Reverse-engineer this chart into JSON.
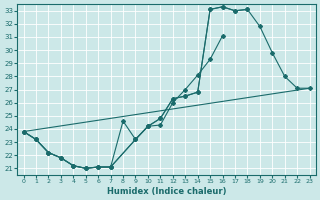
{
  "xlabel": "Humidex (Indice chaleur)",
  "bg_color": "#cce8e8",
  "line_color": "#1a6b6b",
  "xlim": [
    -0.5,
    23.5
  ],
  "ylim": [
    20.5,
    33.5
  ],
  "xticks": [
    0,
    1,
    2,
    3,
    4,
    5,
    6,
    7,
    8,
    9,
    10,
    11,
    12,
    13,
    14,
    15,
    16,
    17,
    18,
    19,
    20,
    21,
    22,
    23
  ],
  "yticks": [
    21,
    22,
    23,
    24,
    25,
    26,
    27,
    28,
    29,
    30,
    31,
    32,
    33
  ],
  "series": [
    {
      "x": [
        0,
        1,
        2,
        3,
        4,
        5,
        6,
        7,
        9,
        10,
        11,
        12,
        13,
        14,
        15,
        16,
        17,
        18,
        19,
        20,
        21,
        22,
        23
      ],
      "y": [
        23.8,
        23.2,
        22.2,
        21.8,
        21.2,
        21.0,
        21.1,
        21.1,
        23.2,
        24.2,
        24.8,
        26.3,
        26.5,
        26.8,
        33.1,
        33.3,
        33.0,
        33.1,
        31.8,
        29.8,
        28.0,
        27.1,
        27.1
      ]
    },
    {
      "x": [
        0,
        1,
        2,
        3,
        4,
        5,
        6,
        7,
        9,
        10,
        11,
        12,
        13,
        14,
        15,
        16,
        17,
        18
      ],
      "y": [
        23.8,
        23.2,
        22.2,
        21.8,
        21.2,
        21.0,
        21.1,
        21.1,
        23.2,
        24.2,
        24.8,
        26.3,
        26.5,
        26.8,
        33.1,
        33.3,
        33.0,
        33.1
      ]
    },
    {
      "x": [
        0,
        1,
        2,
        3,
        4,
        5,
        6,
        7,
        8,
        9,
        10,
        11,
        12,
        13,
        14,
        15,
        16
      ],
      "y": [
        23.8,
        23.2,
        22.2,
        21.8,
        21.2,
        21.0,
        21.1,
        21.1,
        24.6,
        23.2,
        24.2,
        24.3,
        26.0,
        27.0,
        28.1,
        29.3,
        31.1
      ]
    },
    {
      "x": [
        0,
        23
      ],
      "y": [
        23.8,
        27.1
      ]
    }
  ]
}
